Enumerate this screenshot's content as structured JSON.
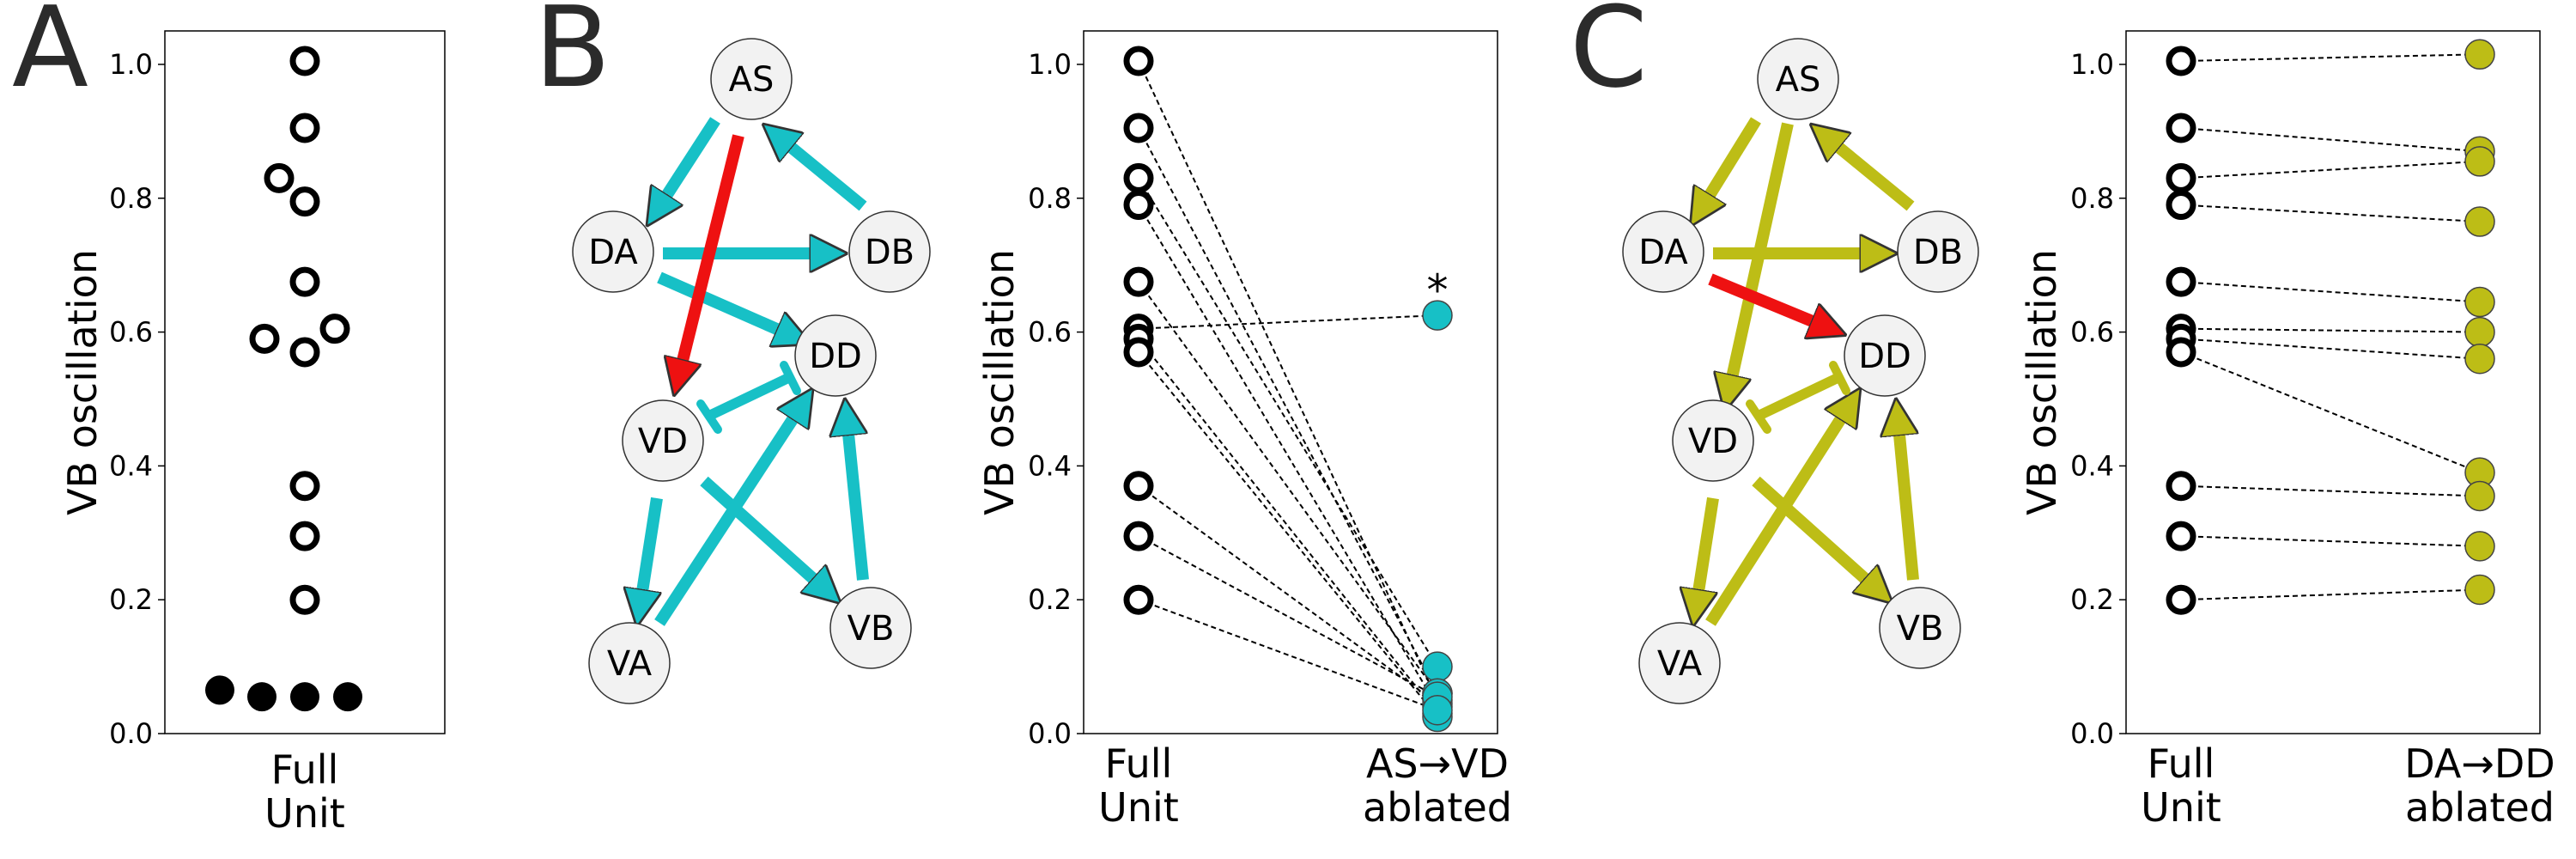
{
  "panels": {
    "a": "A",
    "b": "B",
    "c": "C"
  },
  "colors": {
    "cyan": "#17c0c6",
    "olive": "#bdbd16",
    "red": "#ee1111",
    "node_fill": "#f2f2f2"
  },
  "network": {
    "nodes": [
      "AS",
      "DA",
      "DB",
      "DD",
      "VD",
      "VA",
      "VB"
    ]
  },
  "chart_data": [
    {
      "type": "scatter",
      "panel": "A",
      "ylabel": "VB oscillation",
      "ylim": [
        0,
        1.05
      ],
      "yticks": [
        "0.0",
        "0.2",
        "0.4",
        "0.6",
        "0.8",
        "1.0"
      ],
      "category": [
        "Full",
        "Unit"
      ],
      "open_values": [
        1.005,
        0.905,
        0.83,
        0.795,
        0.675,
        0.59,
        0.605,
        0.57,
        0.37,
        0.295,
        0.2
      ],
      "filled_values": [
        0.065,
        0.055,
        0.055,
        0.055
      ]
    },
    {
      "type": "scatter",
      "panel": "B",
      "ylabel": "VB oscillation",
      "ylim": [
        0,
        1.05
      ],
      "yticks": [
        "0.0",
        "0.2",
        "0.4",
        "0.6",
        "0.8",
        "1.0"
      ],
      "categories": [
        [
          "Full",
          "Unit"
        ],
        [
          "AS→VD",
          "ablated"
        ]
      ],
      "full_unit": [
        1.005,
        0.905,
        0.83,
        0.79,
        0.675,
        0.605,
        0.59,
        0.57,
        0.37,
        0.295,
        0.2
      ],
      "ablated": [
        0.05,
        0.06,
        0.1,
        0.04,
        0.06,
        0.625,
        0.03,
        0.025,
        0.045,
        0.055,
        0.035
      ],
      "annotation": "*"
    },
    {
      "type": "scatter",
      "panel": "C",
      "ylabel": "VB oscillation",
      "ylim": [
        0,
        1.05
      ],
      "yticks": [
        "0.0",
        "0.2",
        "0.4",
        "0.6",
        "0.8",
        "1.0"
      ],
      "categories": [
        [
          "Full",
          "Unit"
        ],
        [
          "DA→DD",
          "ablated"
        ]
      ],
      "full_unit": [
        1.005,
        0.905,
        0.83,
        0.79,
        0.675,
        0.605,
        0.59,
        0.57,
        0.37,
        0.295,
        0.2
      ],
      "ablated": [
        1.015,
        0.87,
        0.855,
        0.765,
        0.645,
        0.6,
        0.56,
        0.39,
        0.355,
        0.28,
        0.215
      ]
    }
  ]
}
